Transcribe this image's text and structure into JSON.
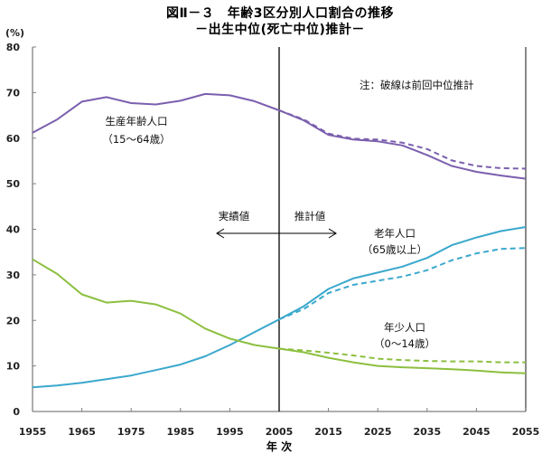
{
  "title_line1": "図Ⅱ－３　年齢3区分別人口割合の推移",
  "title_line2": "－出生中位(死亡中位)推計－",
  "colors": {
    "working_age": "#7b5fae",
    "elderly": "#3aa8cc",
    "children": "#8cbf3f",
    "axis": "#808080",
    "divider": "#000000"
  },
  "chart_data": {
    "type": "line",
    "title": "図Ⅱ－３　年齢3区分別人口割合の推移 －出生中位(死亡中位)推計－",
    "xlabel": "年 次",
    "ylabel": "(%)",
    "xlim": [
      1955,
      2055
    ],
    "ylim": [
      0,
      80
    ],
    "x_ticks": [
      1955,
      1965,
      1975,
      1985,
      1995,
      2005,
      2015,
      2025,
      2035,
      2045,
      2055
    ],
    "y_ticks": [
      0,
      10,
      20,
      30,
      40,
      50,
      60,
      70,
      80
    ],
    "grid": false,
    "divider_year": 2005,
    "x": [
      1955,
      1960,
      1965,
      1970,
      1975,
      1980,
      1985,
      1990,
      1995,
      2000,
      2005,
      2010,
      2015,
      2020,
      2025,
      2030,
      2035,
      2040,
      2045,
      2050,
      2055
    ],
    "series": [
      {
        "name": "生産年齢人口（15～64歳）",
        "key": "working_age",
        "style": "solid",
        "values": [
          61.2,
          64.1,
          68.0,
          69.0,
          67.7,
          67.4,
          68.2,
          69.7,
          69.4,
          68.1,
          66.1,
          63.9,
          60.7,
          59.7,
          59.3,
          58.4,
          56.3,
          53.9,
          52.6,
          51.8,
          51.1
        ]
      },
      {
        "name": "生産年齢人口（前回中位推計）",
        "key": "working_age",
        "style": "dashed",
        "x_start": 2005,
        "values": [
          66.1,
          64.1,
          61.0,
          59.9,
          59.7,
          59.0,
          57.6,
          55.1,
          53.9,
          53.4,
          53.3
        ]
      },
      {
        "name": "老年人口（65歳以上）",
        "key": "elderly",
        "style": "solid",
        "values": [
          5.3,
          5.7,
          6.3,
          7.1,
          7.9,
          9.1,
          10.3,
          12.1,
          14.6,
          17.4,
          20.2,
          23.1,
          26.9,
          29.2,
          30.5,
          31.8,
          33.7,
          36.5,
          38.2,
          39.6,
          40.5
        ]
      },
      {
        "name": "老年人口（前回中位推計）",
        "key": "elderly",
        "style": "dashed",
        "x_start": 2005,
        "values": [
          20.2,
          22.5,
          26.0,
          27.8,
          28.7,
          29.6,
          31.0,
          33.2,
          34.7,
          35.7,
          35.9
        ]
      },
      {
        "name": "年少人口（0～14歳）",
        "key": "children",
        "style": "solid",
        "values": [
          33.4,
          30.2,
          25.7,
          23.9,
          24.3,
          23.5,
          21.5,
          18.2,
          16.0,
          14.6,
          13.8,
          13.0,
          11.8,
          10.8,
          10.0,
          9.7,
          9.5,
          9.3,
          9.0,
          8.6,
          8.4
        ]
      },
      {
        "name": "年少人口（前回中位推計）",
        "key": "children",
        "style": "dashed",
        "x_start": 2005,
        "values": [
          13.8,
          13.4,
          12.9,
          12.3,
          11.6,
          11.3,
          11.1,
          11.0,
          11.0,
          10.8,
          10.8
        ]
      }
    ],
    "annotations": {
      "note": "注：破線は前回中位推計",
      "working_age_label": "生産年齢人口",
      "working_age_sub": "（15～64歳）",
      "elderly_label": "老年人口",
      "elderly_sub": "（65歳以上）",
      "children_label": "年少人口",
      "children_sub": "（0～14歳）",
      "actual_label": "実績値",
      "projection_label": "推計値"
    }
  }
}
